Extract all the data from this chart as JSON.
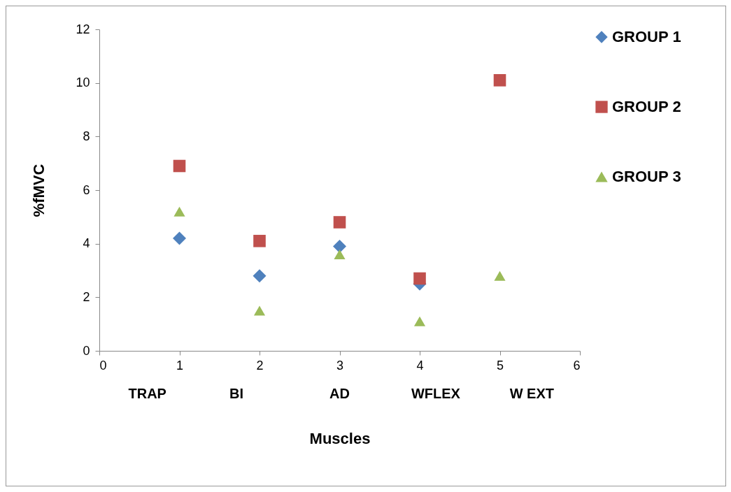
{
  "chart_data": {
    "type": "scatter",
    "xlabel": "Muscles",
    "ylabel": "%fMVC",
    "x": [
      1,
      2,
      3,
      4,
      5
    ],
    "xlim": [
      0,
      6
    ],
    "xticks": [
      0,
      1,
      2,
      3,
      4,
      5,
      6
    ],
    "ylim": [
      0,
      12
    ],
    "yticks": [
      0,
      2,
      4,
      6,
      8,
      10,
      12
    ],
    "grid": false,
    "legend": "right",
    "annotations": [
      "TRAP",
      "BI",
      "AD",
      "WFLEX",
      "W EXT"
    ],
    "series": [
      {
        "name": "GROUP 1",
        "color": "#4f81bd",
        "marker": "diamond",
        "values": [
          4.2,
          2.8,
          3.9,
          2.5,
          null
        ]
      },
      {
        "name": "GROUP 2",
        "color": "#c0504d",
        "marker": "square",
        "values": [
          6.9,
          4.1,
          4.8,
          2.7,
          10.1
        ]
      },
      {
        "name": "GROUP 3",
        "color": "#9bbb59",
        "marker": "triangle",
        "values": [
          5.2,
          1.5,
          3.6,
          1.1,
          2.8
        ]
      }
    ]
  }
}
